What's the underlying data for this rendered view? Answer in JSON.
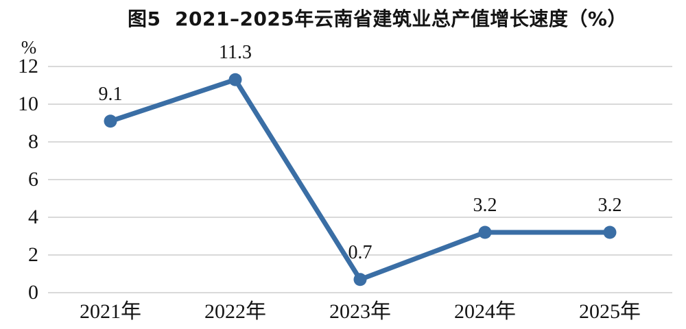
{
  "chart_data": {
    "type": "line",
    "title": "图5  2021–2025年云南省建筑业总产值增长速度（%）",
    "unit_label": "%",
    "categories": [
      "2021年",
      "2022年",
      "2023年",
      "2024年",
      "2025年"
    ],
    "series": [
      {
        "name": "建筑业总产值增长速度",
        "values": [
          9.1,
          11.3,
          0.7,
          3.2,
          3.2
        ]
      }
    ],
    "data_labels": [
      "9.1",
      "11.3",
      "0.7",
      "3.2",
      "3.2"
    ],
    "y_ticks": [
      0,
      2,
      4,
      6,
      8,
      10,
      12
    ],
    "ylim": [
      0,
      12
    ],
    "xlabel": "",
    "ylabel": "%",
    "grid": true,
    "legend_position": "none",
    "line_color": "#3a6ea5",
    "grid_color": "#d9d9d9",
    "text_color": "#141414",
    "background_color": "#ffffff"
  }
}
